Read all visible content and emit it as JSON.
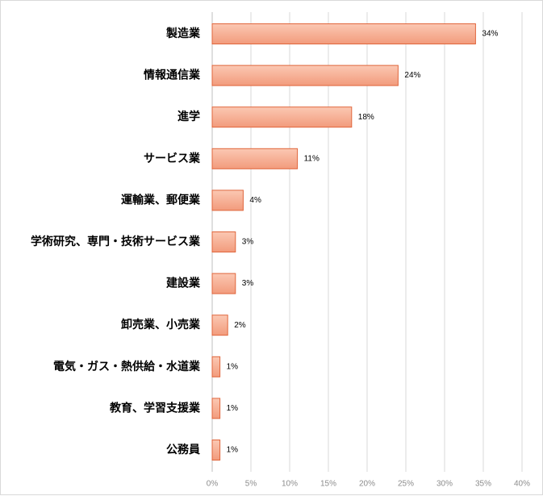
{
  "chart_data": {
    "type": "bar",
    "orientation": "horizontal",
    "categories": [
      "製造業",
      "情報通信業",
      "進学",
      "サービス業",
      "運輸業、郵便業",
      "学術研究、専門・技術サービス業",
      "建設業",
      "卸売業、小売業",
      "電気・ガス・熱供給・水道業",
      "教育、学習支援業",
      "公務員"
    ],
    "values": [
      34,
      24,
      18,
      11,
      4,
      3,
      3,
      2,
      1,
      1,
      1
    ],
    "value_labels": [
      "34%",
      "24%",
      "18%",
      "11%",
      "4%",
      "3%",
      "3%",
      "2%",
      "1%",
      "1%",
      "1%"
    ],
    "xlim": [
      0,
      40
    ],
    "x_ticks": [
      0,
      5,
      10,
      15,
      20,
      25,
      30,
      35,
      40
    ],
    "x_tick_labels": [
      "0%",
      "5%",
      "10%",
      "15%",
      "20%",
      "25%",
      "30%",
      "35%",
      "40%"
    ],
    "grid": true,
    "legend": "none",
    "colors": {
      "bar_fill_top": "#fbc8b3",
      "bar_fill_bottom": "#f29b7c",
      "bar_stroke": "#e0663c",
      "grid": "#d9d9d9",
      "axis": "#bfbfbf"
    }
  }
}
